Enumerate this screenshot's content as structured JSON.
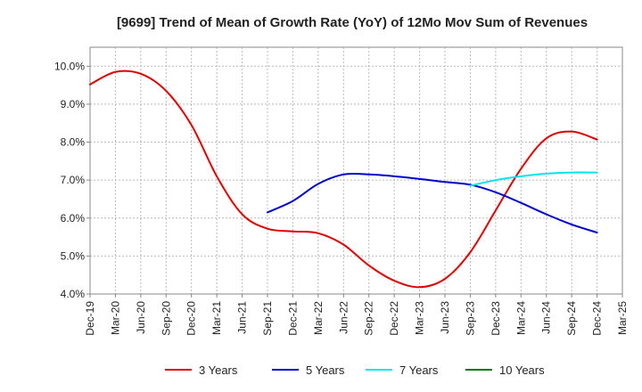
{
  "chart_data": {
    "type": "line",
    "title": "[9699]  Trend of Mean of Growth Rate (YoY) of 12Mo Mov Sum of Revenues",
    "xlabel": "",
    "ylabel": "",
    "ylim": [
      4.0,
      10.5
    ],
    "yticks": [
      4.0,
      5.0,
      6.0,
      7.0,
      8.0,
      9.0,
      10.0
    ],
    "ytick_labels": [
      "4.0%",
      "5.0%",
      "6.0%",
      "7.0%",
      "8.0%",
      "9.0%",
      "10.0%"
    ],
    "x_start": "Dec-19",
    "x_count": 22,
    "categories": [
      "Dec-19",
      "Mar-20",
      "Jun-20",
      "Sep-20",
      "Dec-20",
      "Mar-21",
      "Jun-21",
      "Sep-21",
      "Dec-21",
      "Mar-22",
      "Jun-22",
      "Sep-22",
      "Dec-22",
      "Mar-23",
      "Jun-23",
      "Sep-23",
      "Dec-23",
      "Mar-24",
      "Jun-24",
      "Sep-24",
      "Dec-24",
      "Mar-25"
    ],
    "grid": true,
    "legend_position": "bottom",
    "series": [
      {
        "name": "3 Years",
        "color": "#dd0000",
        "points": [
          [
            0,
            9.52
          ],
          [
            1,
            9.85
          ],
          [
            2,
            9.8
          ],
          [
            3,
            9.35
          ],
          [
            4,
            8.45
          ],
          [
            5,
            7.1
          ],
          [
            6,
            6.1
          ],
          [
            7,
            5.72
          ],
          [
            8,
            5.65
          ],
          [
            9,
            5.6
          ],
          [
            10,
            5.3
          ],
          [
            11,
            4.75
          ],
          [
            12,
            4.35
          ],
          [
            13,
            4.18
          ],
          [
            14,
            4.4
          ],
          [
            15,
            5.1
          ],
          [
            16,
            6.2
          ],
          [
            17,
            7.3
          ],
          [
            18,
            8.1
          ],
          [
            19,
            8.28
          ],
          [
            20,
            8.07
          ]
        ]
      },
      {
        "name": "5 Years",
        "color": "#0000cc",
        "points": [
          [
            7,
            6.15
          ],
          [
            8,
            6.45
          ],
          [
            9,
            6.9
          ],
          [
            10,
            7.15
          ],
          [
            11,
            7.15
          ],
          [
            12,
            7.1
          ],
          [
            13,
            7.03
          ],
          [
            14,
            6.95
          ],
          [
            15,
            6.88
          ],
          [
            16,
            6.68
          ],
          [
            17,
            6.4
          ],
          [
            18,
            6.1
          ],
          [
            19,
            5.83
          ],
          [
            20,
            5.62
          ]
        ]
      },
      {
        "name": "7 Years",
        "color": "#00e5ee",
        "points": [
          [
            15,
            6.85
          ],
          [
            16,
            7.0
          ],
          [
            17,
            7.1
          ],
          [
            18,
            7.17
          ],
          [
            19,
            7.2
          ],
          [
            20,
            7.2
          ]
        ]
      },
      {
        "name": "10 Years",
        "color": "#007700",
        "points": []
      }
    ]
  }
}
